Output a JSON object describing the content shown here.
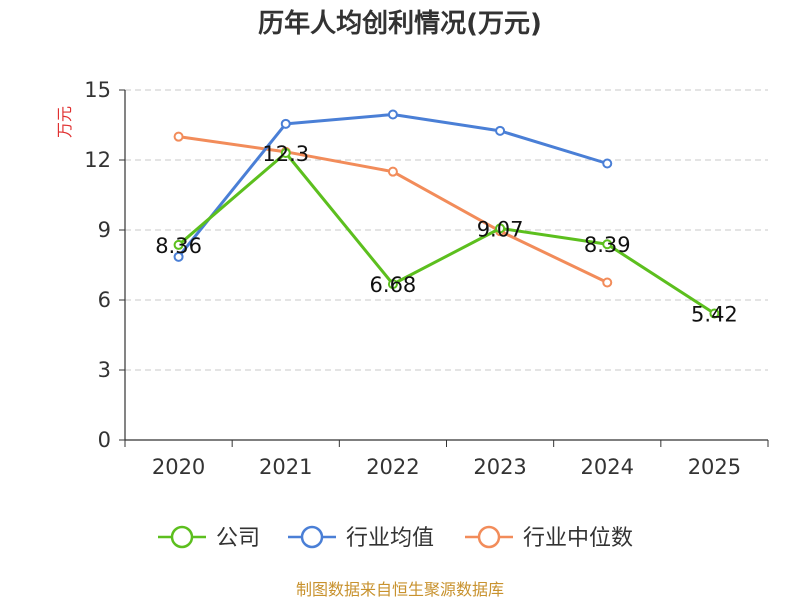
{
  "chart_data": {
    "type": "line",
    "title": "历年人均创利情况(万元)",
    "ylabel": "万元",
    "xlabel": "",
    "categories": [
      "2020",
      "2021",
      "2022",
      "2023",
      "2024",
      "2025"
    ],
    "ylim": [
      0,
      15
    ],
    "yticks": [
      0,
      3,
      6,
      9,
      12,
      15
    ],
    "grid": "dashed horizontal",
    "legend_position": "bottom-center",
    "series": [
      {
        "name": "公司",
        "color": "#5cbf1e",
        "values": [
          8.36,
          12.3,
          6.68,
          9.07,
          8.39,
          5.42
        ],
        "labels": [
          "8.36",
          "12.3",
          "6.68",
          "9.07",
          "8.39",
          "5.42"
        ]
      },
      {
        "name": "行业均值",
        "color": "#4a7fd6",
        "values": [
          7.85,
          13.55,
          13.95,
          13.25,
          11.85,
          null
        ]
      },
      {
        "name": "行业中位数",
        "color": "#f28c5a",
        "values": [
          13.0,
          12.35,
          11.5,
          8.95,
          6.75,
          null
        ]
      }
    ],
    "source": "制图数据来自恒生聚源数据库"
  }
}
